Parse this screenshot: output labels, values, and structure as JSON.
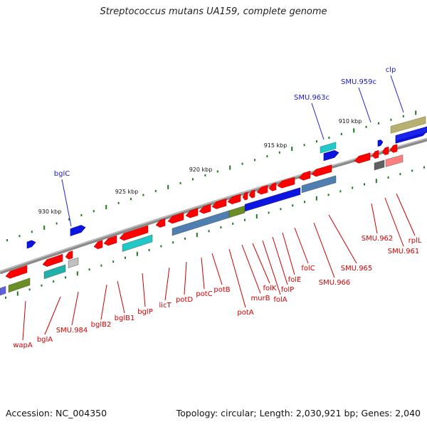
{
  "title": "Streptococcus mutans UA159, complete genome",
  "footer": {
    "accession": "Accession: NC_004350",
    "summary": "Topology: circular; Length: 2,030,921 bp; Genes: 2,040"
  },
  "colors": {
    "backbone": "#8a8a8a",
    "forward_label": "#1a1acc",
    "reverse_label": "#d40000",
    "tick_minor": "#1e7a1e"
  },
  "scale_labels": [
    "930 kbp",
    "925 kbp",
    "920 kbp",
    "915 kbp",
    "910 kbp"
  ],
  "forward_strand_genes": [
    "bglC",
    "SMU.963c",
    "SMU.959c",
    "clp"
  ],
  "reverse_strand_genes": [
    "wapA",
    "bglA",
    "SMU.984",
    "bglB2",
    "bglB1",
    "bglP",
    "licT",
    "potD",
    "potC",
    "potB",
    "potA",
    "murB",
    "folK",
    "folA",
    "folP",
    "folE",
    "folC",
    "SMU.966",
    "SMU.965",
    "SMU.962",
    "SMU.961",
    "rplL"
  ]
}
